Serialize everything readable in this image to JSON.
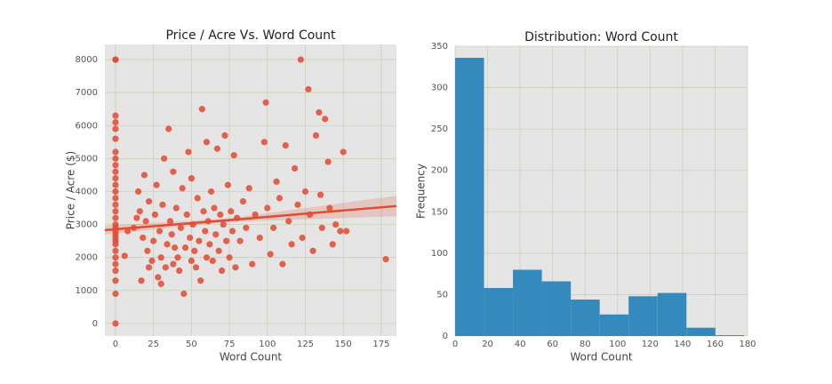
{
  "chart_data": [
    {
      "type": "scatter",
      "title": "Price / Acre Vs. Word Count",
      "x_label": "Word Count",
      "y_label": "Price / Acre ($)",
      "color": "#E24A33",
      "grid": true,
      "xlim": [
        -7,
        185
      ],
      "ylim": [
        -380,
        8460
      ],
      "xticks": [
        0,
        25,
        50,
        75,
        100,
        125,
        150,
        175
      ],
      "yticks": [
        0,
        1000,
        2000,
        3000,
        4000,
        5000,
        6000,
        7000,
        8000
      ],
      "x": [
        0,
        0,
        0,
        0,
        0,
        0,
        0,
        0,
        0,
        0,
        0,
        0,
        0,
        0,
        0,
        0,
        0,
        0,
        0,
        0,
        0,
        0,
        0,
        0,
        0,
        0,
        0,
        0,
        0,
        0,
        0,
        6,
        8,
        12,
        14,
        16,
        15,
        17,
        18,
        20,
        19,
        21,
        22,
        22,
        24,
        25,
        26,
        27,
        28,
        29,
        30,
        30,
        31,
        32,
        33,
        34,
        35,
        36,
        37,
        38,
        38,
        39,
        40,
        41,
        42,
        43,
        44,
        45,
        46,
        47,
        48,
        49,
        50,
        50,
        51,
        52,
        53,
        54,
        55,
        56,
        57,
        58,
        59,
        60,
        60,
        61,
        62,
        63,
        64,
        65,
        66,
        67,
        68,
        69,
        70,
        71,
        72,
        73,
        74,
        75,
        76,
        77,
        78,
        79,
        80,
        82,
        84,
        86,
        88,
        90,
        92,
        95,
        98,
        99,
        100,
        102,
        104,
        106,
        108,
        110,
        112,
        114,
        116,
        118,
        120,
        122,
        123,
        125,
        127,
        128,
        130,
        132,
        134,
        135,
        136,
        138,
        140,
        141,
        143,
        145,
        148,
        150,
        152,
        178
      ],
      "values": [
        8000,
        8000,
        6300,
        6100,
        5900,
        5600,
        5200,
        5000,
        4800,
        4600,
        4400,
        4200,
        4000,
        3800,
        3600,
        3400,
        3200,
        3000,
        2900,
        2800,
        2700,
        2600,
        2500,
        2400,
        2200,
        2000,
        1800,
        1600,
        1300,
        900,
        0,
        2050,
        2800,
        2900,
        3200,
        3400,
        4000,
        1300,
        2600,
        3100,
        4500,
        2200,
        1700,
        3700,
        1900,
        2500,
        3300,
        4200,
        1400,
        2800,
        1200,
        2000,
        3600,
        5000,
        1700,
        2400,
        5900,
        3100,
        2700,
        1800,
        4600,
        2300,
        3500,
        2000,
        1600,
        2900,
        4100,
        900,
        2300,
        3300,
        5200,
        2600,
        1900,
        4400,
        3000,
        2200,
        1700,
        3800,
        2500,
        1300,
        6500,
        3400,
        2800,
        2000,
        5500,
        3100,
        2400,
        4000,
        1900,
        3500,
        2700,
        5300,
        2200,
        3300,
        1600,
        3000,
        5700,
        2500,
        4200,
        2000,
        3400,
        2800,
        5100,
        1700,
        3200,
        2500,
        3700,
        2900,
        4100,
        1800,
        3300,
        2600,
        5500,
        6700,
        3500,
        2100,
        2900,
        4300,
        3800,
        1800,
        5400,
        3100,
        2400,
        4700,
        3600,
        8000,
        2600,
        4000,
        7100,
        3300,
        2200,
        5700,
        6400,
        3900,
        2900,
        6200,
        4900,
        3500,
        2400,
        3000,
        2800,
        5200,
        2800,
        1950
      ],
      "fit": {
        "x": [
          -7,
          75,
          185
        ],
        "y": [
          2830,
          3135,
          3560
        ],
        "lower": [
          2700,
          3080,
          3250
        ],
        "upper": [
          2960,
          3190,
          3870
        ]
      }
    },
    {
      "type": "histogram",
      "title": "Distribution: Word Count",
      "x_label": "Word Count",
      "y_label": "Frequency",
      "color": "#348ABD",
      "grid": true,
      "xlim": [
        0,
        180
      ],
      "ylim": [
        0,
        350
      ],
      "xticks": [
        0,
        20,
        40,
        60,
        80,
        100,
        120,
        140,
        160,
        180
      ],
      "yticks": [
        0,
        50,
        100,
        150,
        200,
        250,
        300,
        350
      ],
      "bins": [
        0,
        17.8,
        35.6,
        53.4,
        71.2,
        89,
        106.8,
        124.6,
        142.4,
        160.2,
        178
      ],
      "counts": [
        336,
        58,
        80,
        66,
        44,
        26,
        48,
        52,
        10,
        1
      ]
    }
  ]
}
